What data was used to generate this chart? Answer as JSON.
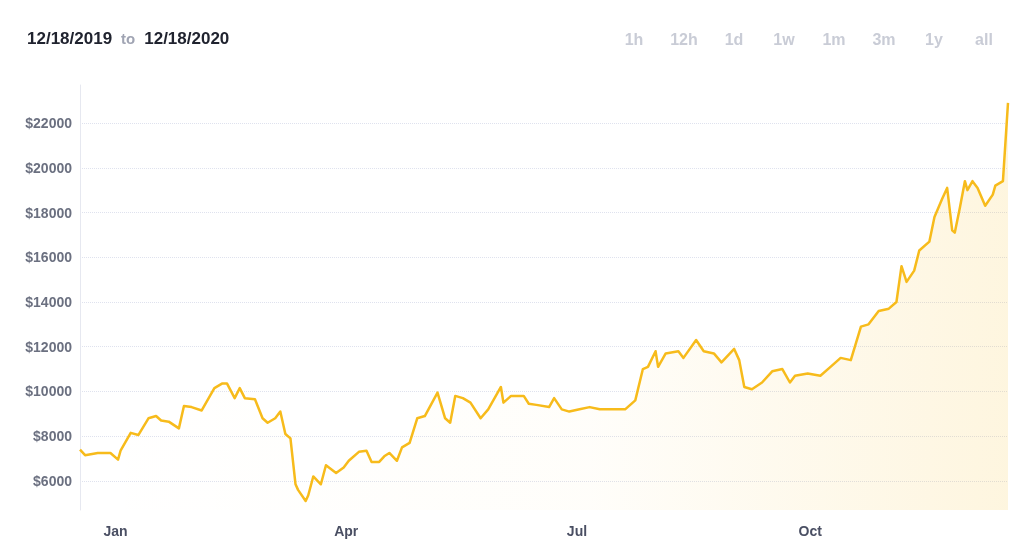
{
  "chart_data": {
    "type": "area",
    "title": "12/18/2019 to 12/18/2020",
    "annotations": [
      "1h",
      "12h",
      "1d",
      "1w",
      "1m",
      "3m",
      "1y",
      "all"
    ],
    "x": [
      "2019-12-18",
      "2019-12-20",
      "2019-12-25",
      "2019-12-30",
      "2020-01-02",
      "2020-01-03",
      "2020-01-07",
      "2020-01-10",
      "2020-01-14",
      "2020-01-17",
      "2020-01-19",
      "2020-01-22",
      "2020-01-26",
      "2020-01-28",
      "2020-01-31",
      "2020-02-04",
      "2020-02-09",
      "2020-02-12",
      "2020-02-14",
      "2020-02-17",
      "2020-02-19",
      "2020-02-21",
      "2020-02-25",
      "2020-02-28",
      "2020-03-01",
      "2020-03-04",
      "2020-03-06",
      "2020-03-08",
      "2020-03-10",
      "2020-03-12",
      "2020-03-13",
      "2020-03-16",
      "2020-03-17",
      "2020-03-19",
      "2020-03-22",
      "2020-03-24",
      "2020-03-28",
      "2020-03-31",
      "2020-04-02",
      "2020-04-06",
      "2020-04-09",
      "2020-04-11",
      "2020-04-14",
      "2020-04-16",
      "2020-04-18",
      "2020-04-21",
      "2020-04-23",
      "2020-04-26",
      "2020-04-29",
      "2020-05-02",
      "2020-05-07",
      "2020-05-10",
      "2020-05-12",
      "2020-05-14",
      "2020-05-17",
      "2020-05-20",
      "2020-05-24",
      "2020-05-27",
      "2020-06-01",
      "2020-06-02",
      "2020-06-05",
      "2020-06-10",
      "2020-06-12",
      "2020-06-15",
      "2020-06-20",
      "2020-06-22",
      "2020-06-25",
      "2020-06-28",
      "2020-07-02",
      "2020-07-06",
      "2020-07-10",
      "2020-07-15",
      "2020-07-20",
      "2020-07-24",
      "2020-07-27",
      "2020-07-29",
      "2020-08-01",
      "2020-08-02",
      "2020-08-05",
      "2020-08-10",
      "2020-08-12",
      "2020-08-17",
      "2020-08-20",
      "2020-08-24",
      "2020-08-27",
      "2020-09-01",
      "2020-09-03",
      "2020-09-05",
      "2020-09-08",
      "2020-09-12",
      "2020-09-16",
      "2020-09-20",
      "2020-09-23",
      "2020-09-25",
      "2020-09-30",
      "2020-10-05",
      "2020-10-09",
      "2020-10-13",
      "2020-10-17",
      "2020-10-21",
      "2020-10-24",
      "2020-10-28",
      "2020-11-01",
      "2020-11-04",
      "2020-11-06",
      "2020-11-08",
      "2020-11-11",
      "2020-11-13",
      "2020-11-17",
      "2020-11-19",
      "2020-11-22",
      "2020-11-24",
      "2020-11-26",
      "2020-11-27",
      "2020-11-29",
      "2020-12-01",
      "2020-12-02",
      "2020-12-04",
      "2020-12-06",
      "2020-12-09",
      "2020-12-12",
      "2020-12-13",
      "2020-12-16",
      "2020-12-18"
    ],
    "series": [
      {
        "color": "#f7bb1b",
        "values": [
          7400,
          7150,
          7250,
          7250,
          6950,
          7350,
          8150,
          8050,
          8800,
          8900,
          8700,
          8650,
          8350,
          9350,
          9300,
          9150,
          10150,
          10350,
          10350,
          9700,
          10150,
          9700,
          9650,
          8800,
          8600,
          8800,
          9100,
          8100,
          7900,
          5850,
          5600,
          5100,
          5350,
          6200,
          5850,
          6700,
          6350,
          6600,
          6900,
          7300,
          7350,
          6850,
          6850,
          7100,
          7250,
          6900,
          7500,
          7700,
          8800,
          8900,
          9950,
          8800,
          8600,
          9800,
          9700,
          9500,
          8800,
          9200,
          10200,
          9500,
          9800,
          9800,
          9450,
          9400,
          9300,
          9700,
          9200,
          9100,
          9200,
          9300,
          9200,
          9200,
          9200,
          9600,
          11000,
          11100,
          11800,
          11100,
          11700,
          11800,
          11500,
          12300,
          11800,
          11700,
          11300,
          11900,
          11400,
          10200,
          10100,
          10400,
          10900,
          11000,
          10400,
          10700,
          10800,
          10700,
          11100,
          11500,
          11400,
          12900,
          13000,
          13600,
          13700,
          14000,
          15600,
          14900,
          15400,
          16300,
          16700,
          17800,
          18600,
          19100,
          17200,
          17100,
          18200,
          19400,
          19000,
          19400,
          19100,
          18300,
          18800,
          19200,
          19400,
          22900
        ]
      }
    ],
    "xlim": [
      "2019-12-18",
      "2020-12-18"
    ],
    "xticks": [
      {
        "value": "2020-01-01",
        "label": "Jan"
      },
      {
        "value": "2020-04-01",
        "label": "Apr"
      },
      {
        "value": "2020-07-01",
        "label": "Jul"
      },
      {
        "value": "2020-10-01",
        "label": "Oct"
      }
    ],
    "ylim": [
      4700,
      23700
    ],
    "yticks": [
      {
        "value": 6000,
        "label": "$6000"
      },
      {
        "value": 8000,
        "label": "$8000"
      },
      {
        "value": 10000,
        "label": "$10000"
      },
      {
        "value": 12000,
        "label": "$12000"
      },
      {
        "value": 14000,
        "label": "$14000"
      },
      {
        "value": 16000,
        "label": "$16000"
      },
      {
        "value": 18000,
        "label": "$18000"
      },
      {
        "value": 20000,
        "label": "$20000"
      },
      {
        "value": 22000,
        "label": "$22000"
      }
    ],
    "grid": "y",
    "marker": "none",
    "line_style": "solid"
  }
}
